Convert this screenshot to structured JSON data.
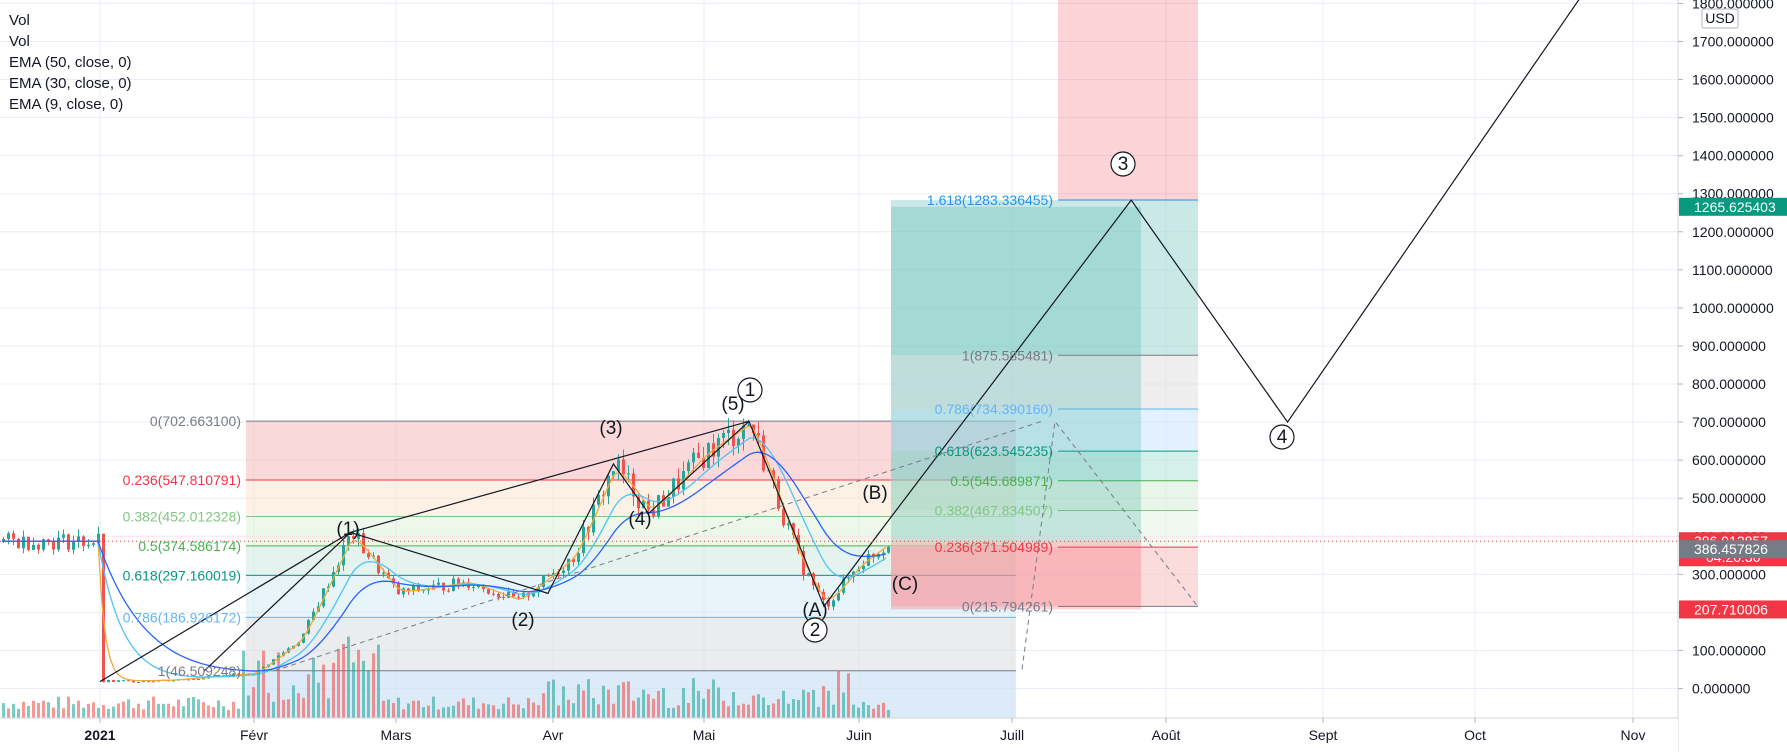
{
  "legend": [
    "Vol",
    "Vol",
    "EMA (50, close, 0)",
    "EMA (30, close, 0)",
    "EMA (9, close, 0)"
  ],
  "currency": "USD",
  "price_axis": {
    "ticks": [
      "0.000000",
      "100.000000",
      "200.000000",
      "300.000000",
      "400.000000",
      "500.000000",
      "600.000000",
      "700.000000",
      "800.000000",
      "900.000000",
      "1000.000000",
      "1100.000000",
      "1200.000000",
      "1300.000000",
      "1400.000000",
      "1500.000000",
      "1600.000000",
      "1700.000000",
      "1800.000000"
    ],
    "badges": [
      {
        "text": "1265.625403",
        "value": 1265.625403,
        "color": "#089981"
      },
      {
        "text": "386.912857",
        "sub": "04:20:30",
        "value": 386.912857,
        "color": "#f23645"
      },
      {
        "text": "386.457826",
        "value": 366.0,
        "color": "#787b86"
      },
      {
        "text": "207.710006",
        "value": 207.710006,
        "color": "#f23645"
      }
    ]
  },
  "time_axis": {
    "labels": [
      "2021",
      "Févr",
      "Mars",
      "Avr",
      "Mai",
      "Juin",
      "Juill",
      "Août",
      "Sept",
      "Oct",
      "Nov"
    ]
  },
  "fib_retracement": {
    "levels": [
      {
        "label": "0(702.663100)",
        "value": 702.6631,
        "color": "#787b86"
      },
      {
        "label": "0.236(547.810791)",
        "value": 547.810791,
        "color": "#f23645"
      },
      {
        "label": "0.382(452.012328)",
        "value": 452.012328,
        "color": "#81c784"
      },
      {
        "label": "0.5(374.586174)",
        "value": 374.586174,
        "color": "#4caf50"
      },
      {
        "label": "0.618(297.160019)",
        "value": 297.160019,
        "color": "#089981"
      },
      {
        "label": "0.786(186.926172)",
        "value": 186.926172,
        "color": "#64b5f6"
      },
      {
        "label": "1(46.509248)",
        "value": 46.509248,
        "color": "#787b86"
      }
    ]
  },
  "fib_extension": {
    "levels": [
      {
        "label": "1.618(1283.336455)",
        "value": 1283.336455,
        "color": "#2196f3"
      },
      {
        "label": "1(875.585481)",
        "value": 875.585481,
        "color": "#787b86"
      },
      {
        "label": "0.786(734.390160)",
        "value": 734.39016,
        "color": "#64b5f6"
      },
      {
        "label": "0.618(623.545235)",
        "value": 623.545235,
        "color": "#089981"
      },
      {
        "label": "0.5(545.689871)",
        "value": 545.689871,
        "color": "#4caf50"
      },
      {
        "label": "0.382(467.834507)",
        "value": 467.834507,
        "color": "#81c784"
      },
      {
        "label": "0.236(371.504989)",
        "value": 371.504989,
        "color": "#f23645"
      },
      {
        "label": "0(215.794261)",
        "value": 215.794261,
        "color": "#787b86"
      }
    ]
  },
  "wave_labels": [
    "(1)",
    "(2)",
    "(3)",
    "(4)",
    "(5)",
    "1",
    "2",
    "3",
    "4",
    "(A)",
    "(B)",
    "(C)"
  ],
  "colors": {
    "up": "#26a69a",
    "down": "#ef5350",
    "ema9": "#f2a93b",
    "ema30": "#4fc3f7",
    "ema50": "#2962ff",
    "grid": "#e8eef5"
  },
  "chart_data": {
    "type": "line",
    "title": "",
    "xlabel": "",
    "ylabel": "USD",
    "ylim": [
      -80,
      1800
    ],
    "x": [
      "2021-01-01",
      "2021-01-15",
      "2021-02-01",
      "2021-02-10",
      "2021-02-20",
      "2021-03-01",
      "2021-03-15",
      "2021-03-25",
      "2021-04-05",
      "2021-04-13",
      "2021-04-20",
      "2021-05-01",
      "2021-05-10",
      "2021-05-20",
      "2021-05-25",
      "2021-06-01",
      "2021-06-07"
    ],
    "series": [
      {
        "values": [
          18,
          22,
          40,
          130,
          410,
          250,
          280,
          230,
          350,
          590,
          460,
          620,
          700,
          330,
          216,
          330,
          387
        ]
      }
    ]
  }
}
